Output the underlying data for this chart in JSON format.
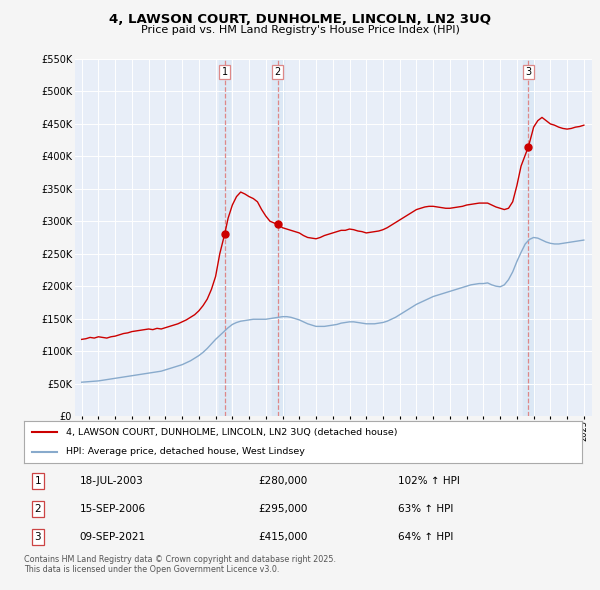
{
  "title": "4, LAWSON COURT, DUNHOLME, LINCOLN, LN2 3UQ",
  "subtitle": "Price paid vs. HM Land Registry's House Price Index (HPI)",
  "red_label": "4, LAWSON COURT, DUNHOLME, LINCOLN, LN2 3UQ (detached house)",
  "blue_label": "HPI: Average price, detached house, West Lindsey",
  "ylim": [
    0,
    550000
  ],
  "yticks": [
    0,
    50000,
    100000,
    150000,
    200000,
    250000,
    300000,
    350000,
    400000,
    450000,
    500000,
    550000
  ],
  "ytick_labels": [
    "£0",
    "£50K",
    "£100K",
    "£150K",
    "£200K",
    "£250K",
    "£300K",
    "£350K",
    "£400K",
    "£450K",
    "£500K",
    "£550K"
  ],
  "sale_dates": [
    "18-JUL-2003",
    "15-SEP-2006",
    "09-SEP-2021"
  ],
  "sale_prices": [
    280000,
    295000,
    415000
  ],
  "sale_hpi_pct": [
    "102% ↑ HPI",
    "63% ↑ HPI",
    "64% ↑ HPI"
  ],
  "sale_years": [
    2003.54,
    2006.71,
    2021.69
  ],
  "vline_color": "#e8a0a0",
  "vline_dash_color": "#dd8888",
  "red_color": "#cc0000",
  "blue_color": "#88aacc",
  "shade_color": "#dce8f5",
  "background_color": "#f5f5f5",
  "plot_bg": "#e8eef8",
  "footer": "Contains HM Land Registry data © Crown copyright and database right 2025.\nThis data is licensed under the Open Government Licence v3.0.",
  "red_data_x": [
    1995.0,
    1995.25,
    1995.5,
    1995.75,
    1996.0,
    1996.25,
    1996.5,
    1996.75,
    1997.0,
    1997.25,
    1997.5,
    1997.75,
    1998.0,
    1998.25,
    1998.5,
    1998.75,
    1999.0,
    1999.25,
    1999.5,
    1999.75,
    2000.0,
    2000.25,
    2000.5,
    2000.75,
    2001.0,
    2001.25,
    2001.5,
    2001.75,
    2002.0,
    2002.25,
    2002.5,
    2002.75,
    2003.0,
    2003.25,
    2003.54,
    2003.75,
    2004.0,
    2004.25,
    2004.5,
    2004.75,
    2005.0,
    2005.25,
    2005.5,
    2005.75,
    2006.0,
    2006.25,
    2006.71,
    2006.9,
    2007.0,
    2007.25,
    2007.5,
    2007.75,
    2008.0,
    2008.25,
    2008.5,
    2008.75,
    2009.0,
    2009.25,
    2009.5,
    2009.75,
    2010.0,
    2010.25,
    2010.5,
    2010.75,
    2011.0,
    2011.25,
    2011.5,
    2011.75,
    2012.0,
    2012.25,
    2012.5,
    2012.75,
    2013.0,
    2013.25,
    2013.5,
    2013.75,
    2014.0,
    2014.25,
    2014.5,
    2014.75,
    2015.0,
    2015.25,
    2015.5,
    2015.75,
    2016.0,
    2016.25,
    2016.5,
    2016.75,
    2017.0,
    2017.25,
    2017.5,
    2017.75,
    2018.0,
    2018.25,
    2018.5,
    2018.75,
    2019.0,
    2019.25,
    2019.5,
    2019.75,
    2020.0,
    2020.25,
    2020.5,
    2020.75,
    2021.0,
    2021.25,
    2021.69,
    2021.9,
    2022.0,
    2022.25,
    2022.5,
    2022.75,
    2023.0,
    2023.25,
    2023.5,
    2023.75,
    2024.0,
    2024.25,
    2024.5,
    2024.75,
    2025.0
  ],
  "red_data_y": [
    118000,
    119000,
    121000,
    120000,
    122000,
    121000,
    120000,
    122000,
    123000,
    125000,
    127000,
    128000,
    130000,
    131000,
    132000,
    133000,
    134000,
    133000,
    135000,
    134000,
    136000,
    138000,
    140000,
    142000,
    145000,
    148000,
    152000,
    156000,
    162000,
    170000,
    180000,
    195000,
    215000,
    250000,
    280000,
    305000,
    325000,
    338000,
    345000,
    342000,
    338000,
    335000,
    330000,
    318000,
    308000,
    300000,
    295000,
    292000,
    290000,
    288000,
    286000,
    284000,
    282000,
    278000,
    275000,
    274000,
    273000,
    275000,
    278000,
    280000,
    282000,
    284000,
    286000,
    286000,
    288000,
    287000,
    285000,
    284000,
    282000,
    283000,
    284000,
    285000,
    287000,
    290000,
    294000,
    298000,
    302000,
    306000,
    310000,
    314000,
    318000,
    320000,
    322000,
    323000,
    323000,
    322000,
    321000,
    320000,
    320000,
    321000,
    322000,
    323000,
    325000,
    326000,
    327000,
    328000,
    328000,
    328000,
    325000,
    322000,
    320000,
    318000,
    320000,
    330000,
    355000,
    385000,
    415000,
    435000,
    445000,
    455000,
    460000,
    455000,
    450000,
    448000,
    445000,
    443000,
    442000,
    443000,
    445000,
    446000,
    448000
  ],
  "blue_data_x": [
    1995.0,
    1995.25,
    1995.5,
    1995.75,
    1996.0,
    1996.25,
    1996.5,
    1996.75,
    1997.0,
    1997.25,
    1997.5,
    1997.75,
    1998.0,
    1998.25,
    1998.5,
    1998.75,
    1999.0,
    1999.25,
    1999.5,
    1999.75,
    2000.0,
    2000.25,
    2000.5,
    2000.75,
    2001.0,
    2001.25,
    2001.5,
    2001.75,
    2002.0,
    2002.25,
    2002.5,
    2002.75,
    2003.0,
    2003.25,
    2003.5,
    2003.75,
    2004.0,
    2004.25,
    2004.5,
    2004.75,
    2005.0,
    2005.25,
    2005.5,
    2005.75,
    2006.0,
    2006.25,
    2006.5,
    2006.75,
    2007.0,
    2007.25,
    2007.5,
    2007.75,
    2008.0,
    2008.25,
    2008.5,
    2008.75,
    2009.0,
    2009.25,
    2009.5,
    2009.75,
    2010.0,
    2010.25,
    2010.5,
    2010.75,
    2011.0,
    2011.25,
    2011.5,
    2011.75,
    2012.0,
    2012.25,
    2012.5,
    2012.75,
    2013.0,
    2013.25,
    2013.5,
    2013.75,
    2014.0,
    2014.25,
    2014.5,
    2014.75,
    2015.0,
    2015.25,
    2015.5,
    2015.75,
    2016.0,
    2016.25,
    2016.5,
    2016.75,
    2017.0,
    2017.25,
    2017.5,
    2017.75,
    2018.0,
    2018.25,
    2018.5,
    2018.75,
    2019.0,
    2019.25,
    2019.5,
    2019.75,
    2020.0,
    2020.25,
    2020.5,
    2020.75,
    2021.0,
    2021.25,
    2021.5,
    2021.75,
    2022.0,
    2022.25,
    2022.5,
    2022.75,
    2023.0,
    2023.25,
    2023.5,
    2023.75,
    2024.0,
    2024.25,
    2024.5,
    2024.75,
    2025.0
  ],
  "blue_data_y": [
    52000,
    52500,
    53000,
    53500,
    54000,
    55000,
    56000,
    57000,
    58000,
    59000,
    60000,
    61000,
    62000,
    63000,
    64000,
    65000,
    66000,
    67000,
    68000,
    69000,
    71000,
    73000,
    75000,
    77000,
    79000,
    82000,
    85000,
    89000,
    93000,
    98000,
    104000,
    111000,
    118000,
    124000,
    130000,
    136000,
    141000,
    144000,
    146000,
    147000,
    148000,
    149000,
    149000,
    149000,
    149000,
    150000,
    151000,
    152000,
    153000,
    153000,
    152000,
    150000,
    148000,
    145000,
    142000,
    140000,
    138000,
    138000,
    138000,
    139000,
    140000,
    141000,
    143000,
    144000,
    145000,
    145000,
    144000,
    143000,
    142000,
    142000,
    142000,
    143000,
    144000,
    146000,
    149000,
    152000,
    156000,
    160000,
    164000,
    168000,
    172000,
    175000,
    178000,
    181000,
    184000,
    186000,
    188000,
    190000,
    192000,
    194000,
    196000,
    198000,
    200000,
    202000,
    203000,
    204000,
    204000,
    205000,
    202000,
    200000,
    199000,
    202000,
    210000,
    222000,
    238000,
    252000,
    265000,
    272000,
    275000,
    274000,
    271000,
    268000,
    266000,
    265000,
    265000,
    266000,
    267000,
    268000,
    269000,
    270000,
    271000
  ]
}
